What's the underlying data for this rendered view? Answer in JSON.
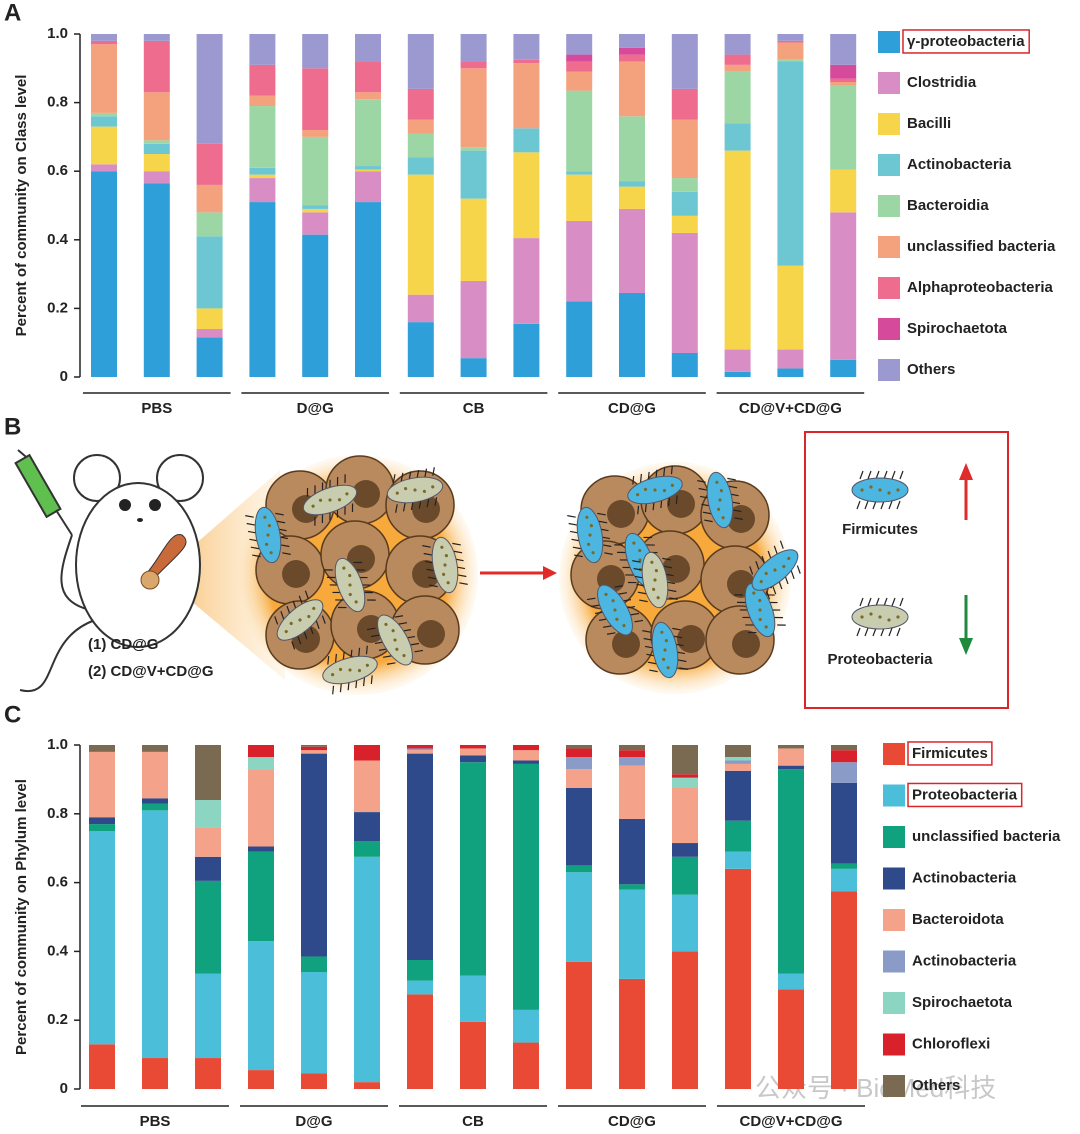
{
  "panels": [
    "A",
    "B",
    "C"
  ],
  "diagram": {
    "groups": [
      "(1) CD@G",
      "(2) CD@V+CD@G"
    ],
    "legend": [
      "Firmicutes",
      "Proteobacteria"
    ]
  },
  "watermark": "公众号 · BioMed科技",
  "chart_data": [
    {
      "type": "bar",
      "stacked": true,
      "y_label": "Percent of community on Class level",
      "categories": [
        null,
        null,
        null,
        null,
        null,
        null,
        null,
        null,
        null,
        null,
        null,
        null,
        null,
        null,
        null
      ],
      "groups": [
        "PBS",
        "D@G",
        "CB",
        "CD@G",
        "CD@V+CD@G"
      ],
      "ylim": [
        0,
        1
      ],
      "yticks": [
        0,
        0.2,
        0.4,
        0.6,
        0.8,
        {
          "value": 1,
          "label": "1.0"
        }
      ],
      "series": [
        {
          "name": "γ-proteobacteria",
          "color": "#2e9fd9",
          "highlight": true,
          "values": [
            0.6,
            0.565,
            0.115,
            0.51,
            0.415,
            0.51,
            0.16,
            0.055,
            0.155,
            0.22,
            0.245,
            0.07,
            0.015,
            0.025,
            0.05
          ]
        },
        {
          "name": "Clostridia",
          "color": "#d98dc5",
          "values": [
            0.02,
            0.035,
            0.025,
            0.07,
            0.065,
            0.09,
            0.08,
            0.225,
            0.25,
            0.235,
            0.245,
            0.35,
            0.065,
            0.055,
            0.43
          ]
        },
        {
          "name": "Bacilli",
          "color": "#f7d54a",
          "values": [
            0.11,
            0.05,
            0.06,
            0.01,
            0.01,
            0.005,
            0.35,
            0.24,
            0.25,
            0.135,
            0.065,
            0.05,
            0.58,
            0.245,
            0.125
          ]
        },
        {
          "name": "Actinobacteria",
          "color": "#6cc7d2",
          "values": [
            0.03,
            0.03,
            0.21,
            0.02,
            0.01,
            0.01,
            0.05,
            0.14,
            0.07,
            0.01,
            0.015,
            0.07,
            0.08,
            0.595,
            0
          ]
        },
        {
          "name": "Bacteroidia",
          "color": "#9dd6a5",
          "values": [
            0.01,
            0.01,
            0.07,
            0.18,
            0.2,
            0.195,
            0.07,
            0.01,
            0,
            0.235,
            0.19,
            0.04,
            0.15,
            0.005,
            0.245
          ]
        },
        {
          "name": "unclassified bacteria",
          "color": "#f4a17d",
          "values": [
            0.2,
            0.14,
            0.08,
            0.03,
            0.02,
            0.02,
            0.04,
            0.23,
            0.19,
            0.055,
            0.16,
            0.17,
            0.02,
            0.05,
            0.01
          ]
        },
        {
          "name": "Alphaproteobacteria",
          "color": "#ee6d8f",
          "values": [
            0.01,
            0.15,
            0.12,
            0.09,
            0.18,
            0.09,
            0.09,
            0.02,
            0.01,
            0.03,
            0.02,
            0.09,
            0.03,
            0.005,
            0.01
          ]
        },
        {
          "name": "Spirochaetota",
          "color": "#d64a9b",
          "values": [
            0,
            0,
            0,
            0,
            0,
            0,
            0,
            0,
            0,
            0.02,
            0.02,
            0,
            0,
            0,
            0.04
          ]
        },
        {
          "name": "Others",
          "color": "#9b99d0",
          "values": [
            0.02,
            0.02,
            0.32,
            0.09,
            0.1,
            0.08,
            0.16,
            0.08,
            0.075,
            0.06,
            0.04,
            0.16,
            0.06,
            0.02,
            0.09
          ]
        }
      ]
    },
    {
      "type": "bar",
      "stacked": true,
      "y_label": "Percent of community on Phylum level",
      "categories": [
        null,
        null,
        null,
        null,
        null,
        null,
        null,
        null,
        null,
        null,
        null,
        null,
        null,
        null,
        null
      ],
      "groups": [
        "PBS",
        "D@G",
        "CB",
        "CD@G",
        "CD@V+CD@G"
      ],
      "ylim": [
        0,
        1
      ],
      "yticks": [
        0,
        0.2,
        0.4,
        0.6,
        0.8,
        {
          "value": 1,
          "label": "1.0"
        }
      ],
      "series": [
        {
          "name": "Firmicutes",
          "color": "#e84a35",
          "highlight": true,
          "values": [
            0.13,
            0.09,
            0.09,
            0.055,
            0.045,
            0.02,
            0.275,
            0.195,
            0.135,
            0.37,
            0.32,
            0.4,
            0.64,
            0.29,
            0.575
          ]
        },
        {
          "name": "Proteobacteria",
          "color": "#4bbfd9",
          "highlight": true,
          "values": [
            0.62,
            0.72,
            0.245,
            0.375,
            0.295,
            0.655,
            0.04,
            0.135,
            0.095,
            0.26,
            0.26,
            0.165,
            0.05,
            0.045,
            0.065
          ]
        },
        {
          "name": "unclassified bacteria",
          "color": "#10a17e",
          "values": [
            0.02,
            0.02,
            0.27,
            0.26,
            0.045,
            0.045,
            0.06,
            0.62,
            0.715,
            0.02,
            0.015,
            0.11,
            0.09,
            0.595,
            0.015
          ]
        },
        {
          "name": "Actinobacteria",
          "color": "#2e4a8a",
          "values": [
            0.02,
            0.015,
            0.07,
            0.015,
            0.59,
            0.085,
            0.6,
            0.02,
            0.01,
            0.225,
            0.19,
            0.04,
            0.145,
            0.01,
            0.235
          ]
        },
        {
          "name": "Bacteroidota",
          "color": "#f5a28a",
          "values": [
            0.19,
            0.135,
            0.085,
            0.225,
            0.01,
            0.15,
            0.01,
            0.02,
            0.03,
            0.055,
            0.155,
            0.16,
            0.02,
            0.05,
            0
          ]
        },
        {
          "name": "Actinobacteria",
          "color": "#8b9bc8",
          "values": [
            0,
            0,
            0,
            0,
            0,
            0,
            0.005,
            0,
            0,
            0.035,
            0.025,
            0,
            0.01,
            0,
            0.06
          ]
        },
        {
          "name": "Spirochaetota",
          "color": "#8dd5c3",
          "values": [
            0,
            0,
            0.08,
            0.035,
            0,
            0,
            0,
            0,
            0,
            0,
            0,
            0.03,
            0.01,
            0,
            0
          ]
        },
        {
          "name": "Chloroflexi",
          "color": "#d9212b",
          "values": [
            0,
            0,
            0,
            0.035,
            0.01,
            0.045,
            0.01,
            0.01,
            0.015,
            0.025,
            0.02,
            0.01,
            0,
            0,
            0.035
          ]
        },
        {
          "name": "Others",
          "color": "#7a6a52",
          "values": [
            0.02,
            0.02,
            0.16,
            0,
            0.005,
            0,
            0,
            0,
            0,
            0.01,
            0.015,
            0.085,
            0.035,
            0.01,
            0.015
          ]
        }
      ]
    }
  ]
}
